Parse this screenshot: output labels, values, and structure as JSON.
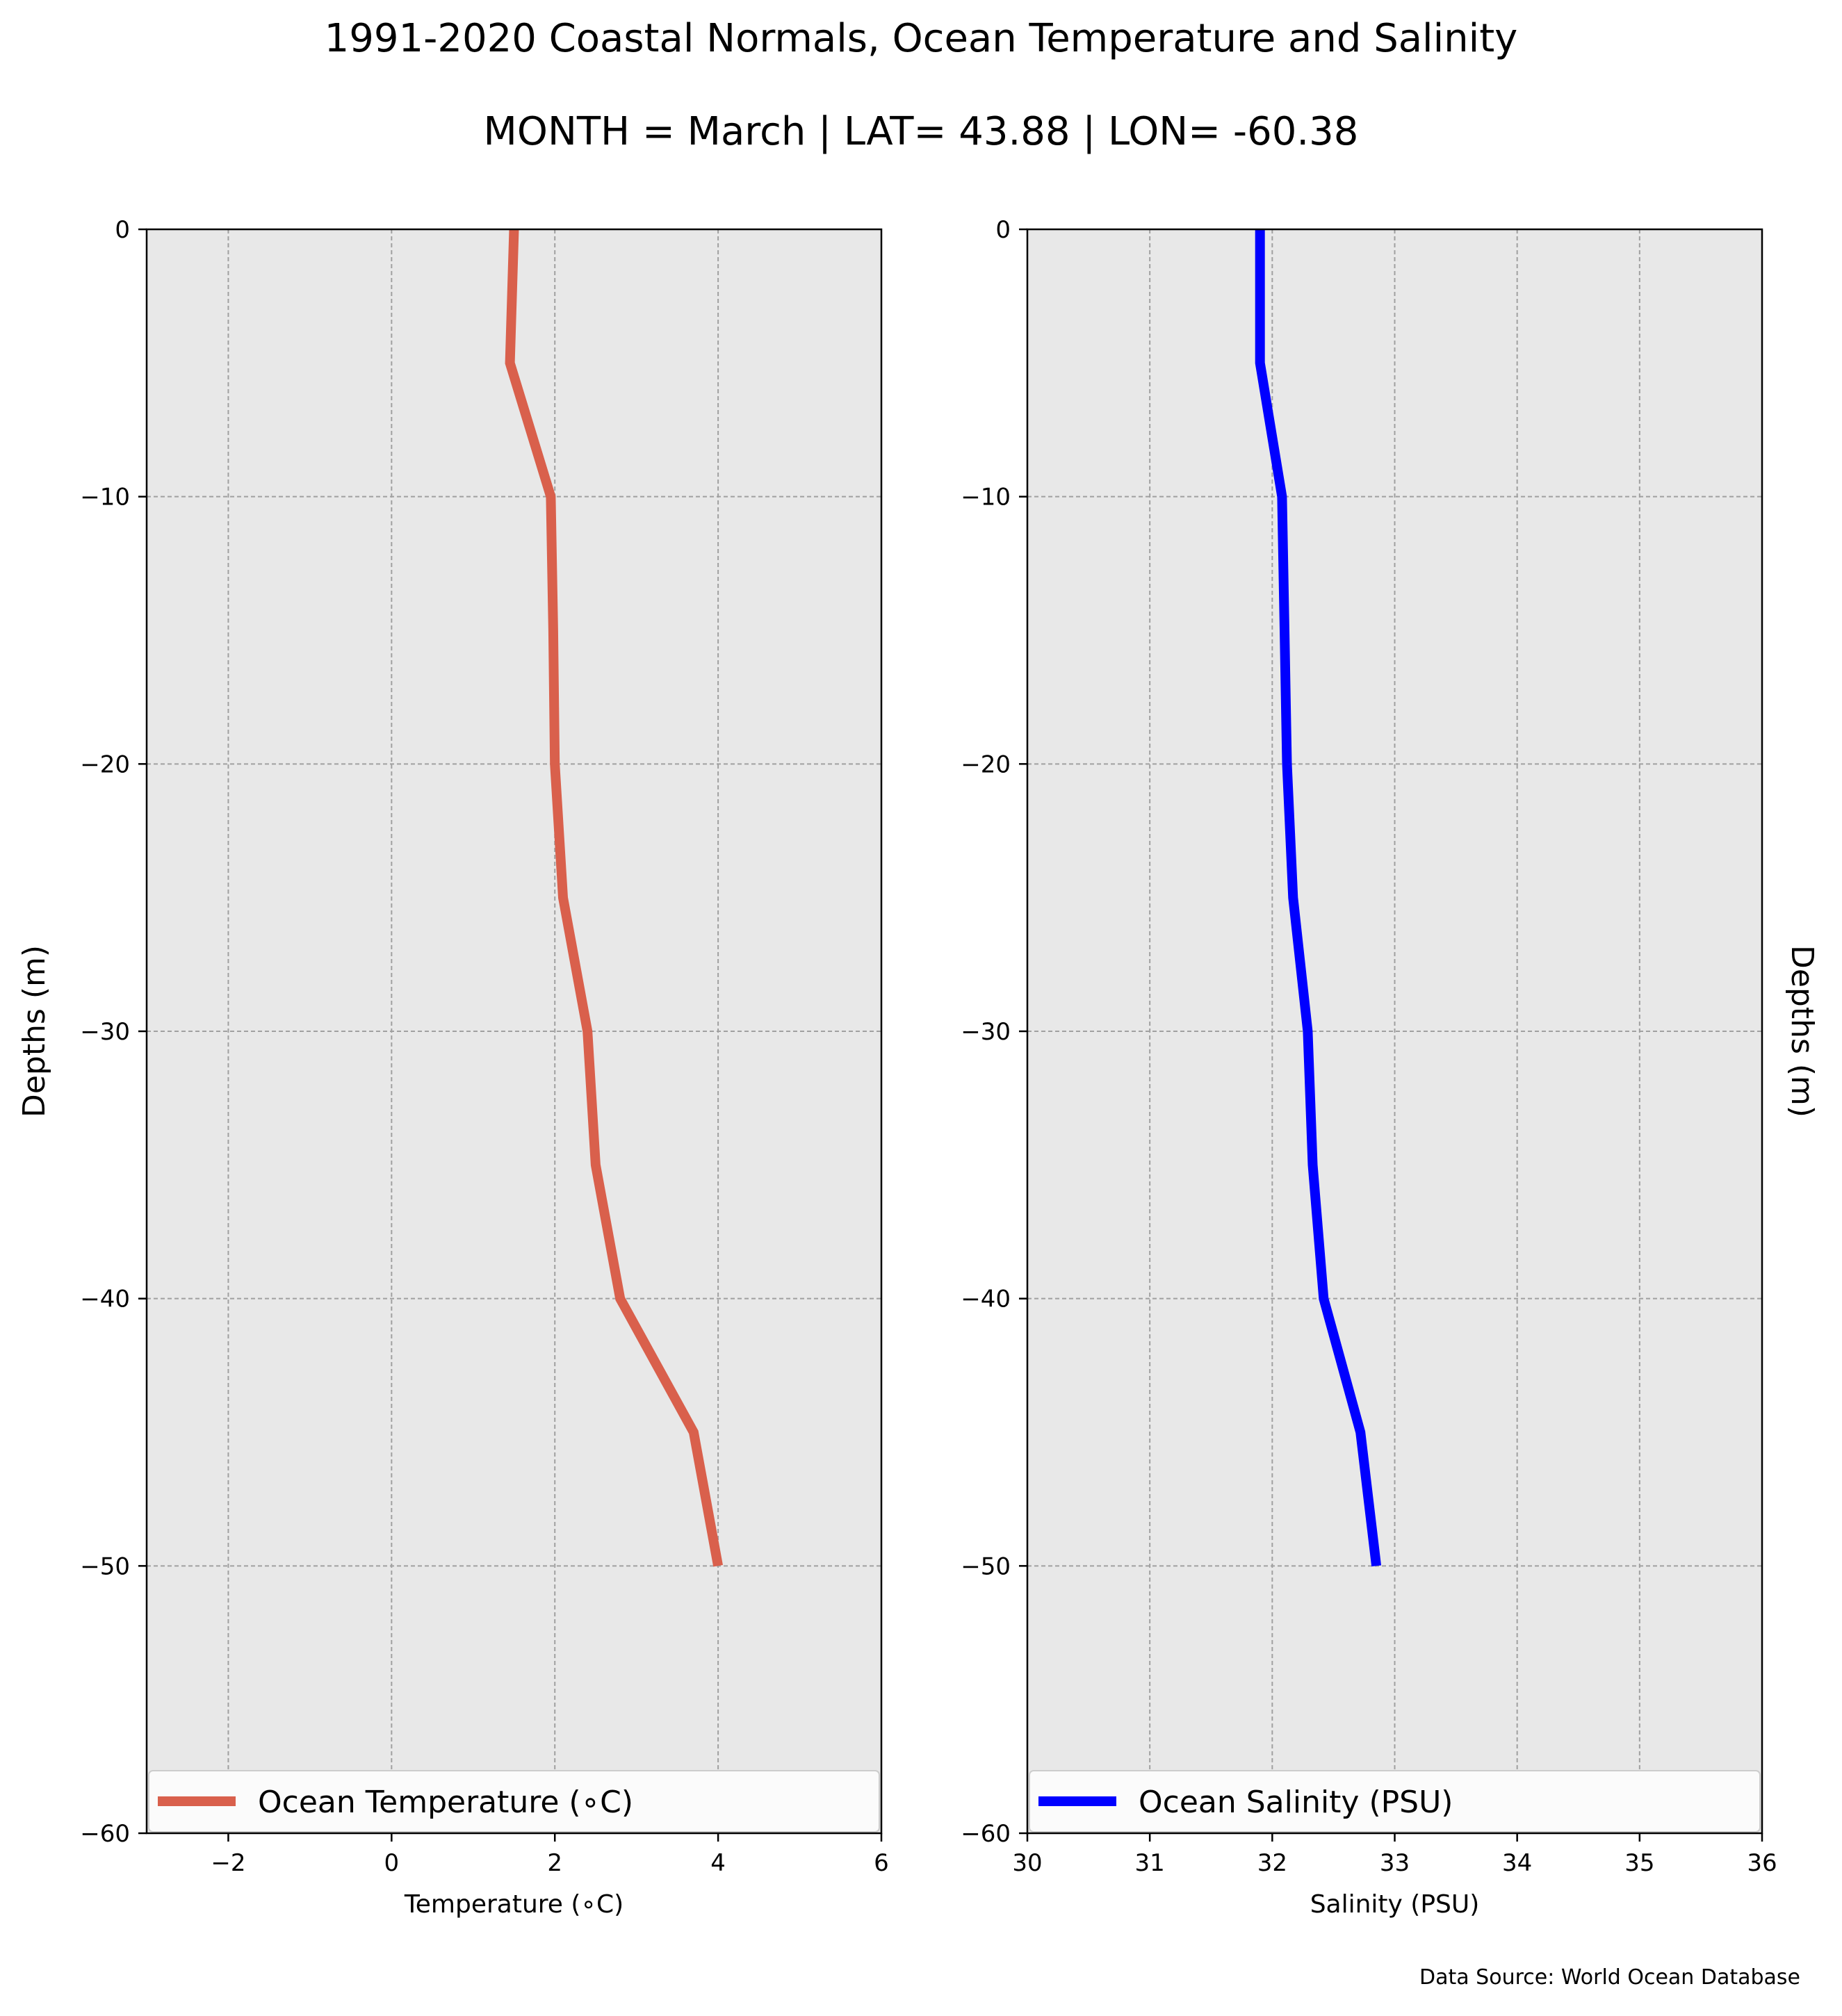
{
  "figure": {
    "title": "1991-2020 Coastal Normals, Ocean Temperature and Salinity",
    "subtitle": "MONTH = March | LAT= 43.88 | LON= -60.38",
    "source": "Data Source: World Ocean Database"
  },
  "chart_data": [
    {
      "type": "line",
      "orientation": "vertical-profile",
      "xlabel": "Temperature ($^\\circ$C)",
      "xlabel_display": "Temperature (∘C)",
      "ylabel": "Depths (m)",
      "xlim": [
        -3,
        6
      ],
      "ylim": [
        -60,
        0
      ],
      "xticks": [
        -2,
        0,
        2,
        4,
        6
      ],
      "xtick_labels": [
        "−2",
        "0",
        "2",
        "4",
        "6"
      ],
      "yticks": [
        0,
        -10,
        -20,
        -30,
        -40,
        -50,
        -60
      ],
      "ytick_labels": [
        "0",
        "−10",
        "−20",
        "−30",
        "−40",
        "−50",
        "−60"
      ],
      "grid": true,
      "legend": "lower-center",
      "series": [
        {
          "name": "Ocean Temperature (∘C)",
          "color": "#d9604c",
          "x": [
            1.5,
            1.45,
            1.95,
            1.98,
            2.0,
            2.1,
            2.4,
            2.5,
            2.8,
            3.7,
            4.0
          ],
          "y": [
            0,
            -5,
            -10,
            -15,
            -20,
            -25,
            -30,
            -35,
            -40,
            -45,
            -50
          ]
        }
      ]
    },
    {
      "type": "line",
      "orientation": "vertical-profile",
      "xlabel": "Salinity (PSU)",
      "ylabel": "Depths (m)",
      "xlim": [
        30,
        36
      ],
      "ylim": [
        -60,
        0
      ],
      "xticks": [
        30,
        31,
        32,
        33,
        34,
        35,
        36
      ],
      "xtick_labels": [
        "30",
        "31",
        "32",
        "33",
        "34",
        "35",
        "36"
      ],
      "yticks": [
        0,
        -10,
        -20,
        -30,
        -40,
        -50,
        -60
      ],
      "ytick_labels": [
        "0",
        "−10",
        "−20",
        "−30",
        "−40",
        "−50",
        "−60"
      ],
      "grid": true,
      "legend": "lower-center",
      "series": [
        {
          "name": "Ocean Salinity (PSU)",
          "color": "#0000ff",
          "x": [
            31.9,
            31.9,
            32.08,
            32.1,
            32.12,
            32.17,
            32.29,
            32.33,
            32.42,
            32.72,
            32.85
          ],
          "y": [
            0,
            -5,
            -10,
            -15,
            -20,
            -25,
            -30,
            -35,
            -40,
            -45,
            -50
          ]
        }
      ]
    }
  ]
}
